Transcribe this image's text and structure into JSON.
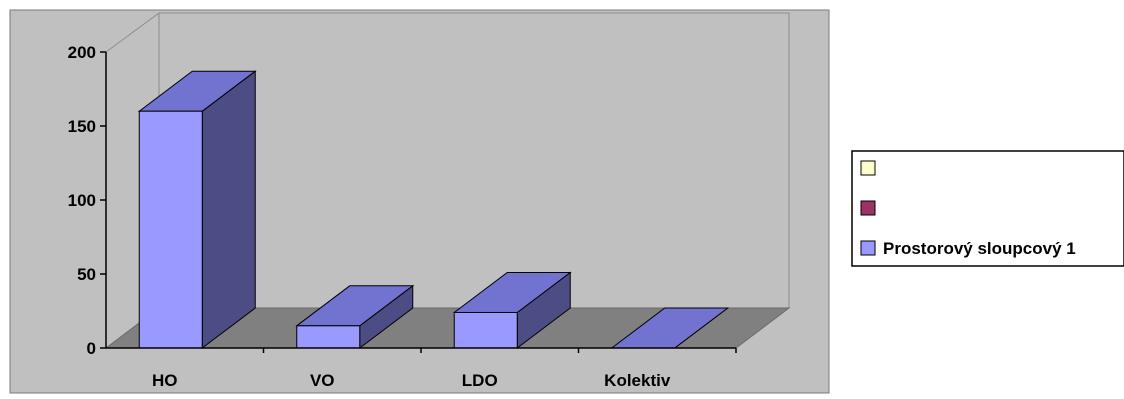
{
  "chart_data": {
    "type": "bar",
    "categories": [
      "HO",
      "VO",
      "LDO",
      "Kolektiv"
    ],
    "series": [
      {
        "name": "",
        "values": [
          0,
          0,
          0,
          0
        ],
        "color": "#FFFFCC"
      },
      {
        "name": "",
        "values": [
          0,
          0,
          0,
          0
        ],
        "color": "#993366"
      },
      {
        "name": "Prostorový sloupcový 1",
        "values": [
          160,
          15,
          24,
          0
        ],
        "color": "#9999FF"
      }
    ],
    "yticks": [
      0,
      50,
      100,
      150,
      200
    ],
    "ylim": [
      0,
      200
    ],
    "grid": false,
    "three_d": true,
    "legend_position": "right",
    "colors": {
      "plot_area": "#C0C0C0",
      "floor": "#808080",
      "bar_front": "#9999FF",
      "bar_top": "#7272D0",
      "bar_side": "#4D4D85",
      "axis": "#000000",
      "wall_line": "#8C8C8C"
    }
  }
}
